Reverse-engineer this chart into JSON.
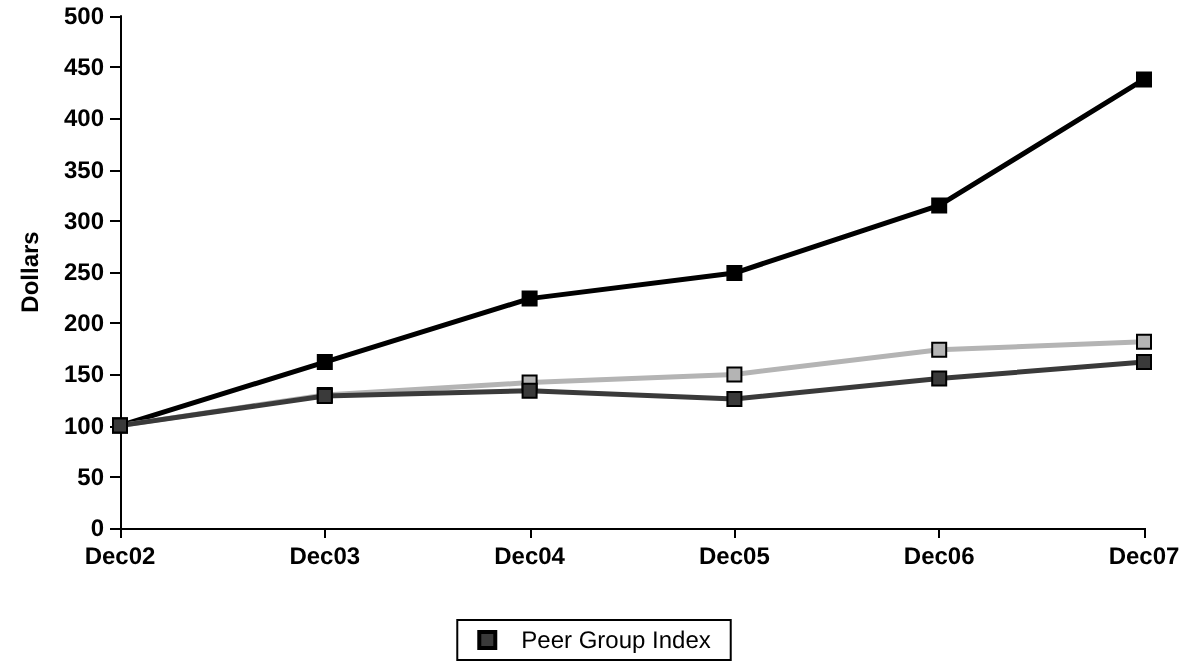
{
  "chart_data": {
    "type": "line",
    "ylabel": "Dollars",
    "categories": [
      "Dec02",
      "Dec03",
      "Dec04",
      "Dec05",
      "Dec06",
      "Dec07"
    ],
    "series": [
      {
        "color": "#000000",
        "values": [
          100,
          162,
          224,
          249,
          315,
          438
        ]
      },
      {
        "color": "#b4b4b4",
        "values": [
          100,
          130,
          142,
          150,
          174,
          182
        ]
      },
      {
        "name": "Peer Group Index",
        "color": "#3a3a3a",
        "values": [
          100,
          129,
          134,
          126,
          146,
          162
        ]
      }
    ],
    "ylim": [
      0,
      500
    ],
    "yticks": [
      0,
      50,
      100,
      150,
      200,
      250,
      300,
      350,
      400,
      450,
      500
    ],
    "grid": false,
    "legend": "bottom",
    "marker": "square",
    "line_style": "solid"
  }
}
